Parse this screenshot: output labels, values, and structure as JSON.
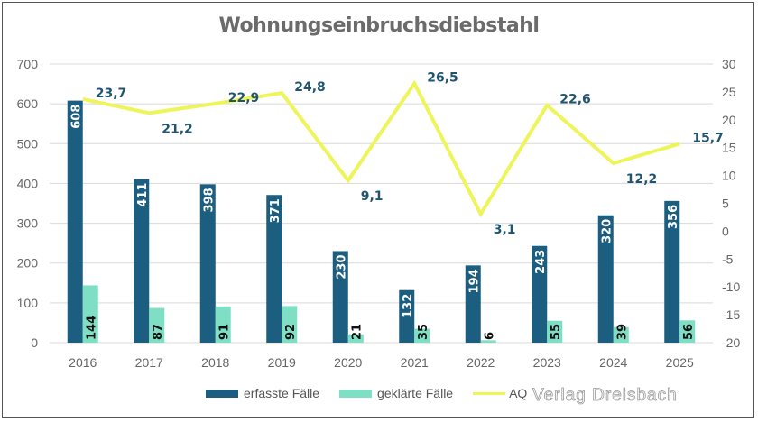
{
  "chart_data": {
    "type": "bar",
    "title": "Wohnungseinbruchsdiebstahl",
    "categories": [
      "2016",
      "2017",
      "2018",
      "2019",
      "2020",
      "2021",
      "2022",
      "2023",
      "2024",
      "2025"
    ],
    "series": [
      {
        "name": "erfasste Fälle",
        "type": "bar",
        "axis": "left",
        "color": "#1b5e80",
        "values": [
          608,
          411,
          398,
          371,
          230,
          132,
          194,
          243,
          320,
          356
        ],
        "labels": [
          "608",
          "411",
          "398",
          "371",
          "230",
          "132",
          "194",
          "243",
          "320",
          "356"
        ]
      },
      {
        "name": "geklärte Fälle",
        "type": "bar",
        "axis": "left",
        "color": "#7fdfc4",
        "values": [
          144,
          87,
          91,
          92,
          21,
          35,
          6,
          55,
          39,
          56
        ],
        "labels": [
          "144",
          "87",
          "91",
          "92",
          "21",
          "35",
          "6",
          "55",
          "39",
          "56"
        ]
      },
      {
        "name": "AQ",
        "type": "line",
        "axis": "right",
        "color": "#eef55a",
        "values": [
          23.7,
          21.2,
          22.9,
          24.8,
          9.1,
          26.5,
          3.1,
          22.6,
          12.2,
          15.7
        ],
        "labels": [
          "23,7",
          "21,2",
          "22,9",
          "24,8",
          "9,1",
          "26,5",
          "3,1",
          "22,6",
          "12,2",
          "15,7"
        ]
      }
    ],
    "y_left": {
      "min": 0,
      "max": 700,
      "step": 100,
      "ticks": [
        "0",
        "100",
        "200",
        "300",
        "400",
        "500",
        "600",
        "700"
      ]
    },
    "y_right": {
      "min": -20,
      "max": 30,
      "step": 5,
      "ticks": [
        "-20",
        "-15",
        "-10",
        "-5",
        "0",
        "5",
        "10",
        "15",
        "20",
        "25",
        "30"
      ]
    },
    "xlabel": "",
    "ylabel": "",
    "grid": true,
    "legend": "bottom"
  },
  "watermark": "Verlag Dreisbach"
}
